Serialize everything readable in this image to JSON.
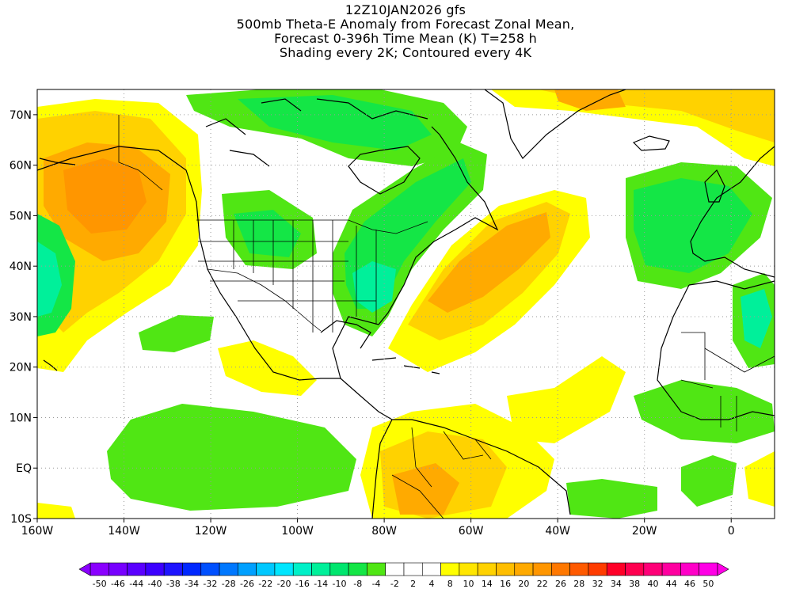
{
  "title": {
    "line1": "12Z10JAN2026 gfs",
    "line2": "500mb Theta-E Anomaly from Forecast Zonal Mean,",
    "line3": "Forecast 0-396h Time Mean (K) T=258 h",
    "line4": "Shading every 2K; Contoured every 4K"
  },
  "map": {
    "lon_range": [
      -160,
      10
    ],
    "lat_range": [
      -10,
      75
    ],
    "x_ticks": [
      "160W",
      "140W",
      "120W",
      "100W",
      "80W",
      "60W",
      "40W",
      "20W",
      "0"
    ],
    "y_ticks": [
      "10S",
      "EQ",
      "10N",
      "20N",
      "30N",
      "40N",
      "50N",
      "60N",
      "70N"
    ],
    "gridlines": "dotted"
  },
  "colorbar": {
    "labels": [
      "-50",
      "-46",
      "-44",
      "-40",
      "-38",
      "-34",
      "-32",
      "-28",
      "-26",
      "-22",
      "-20",
      "-16",
      "-14",
      "-10",
      "-8",
      "-4",
      "-2",
      "2",
      "4",
      "8",
      "10",
      "14",
      "16",
      "20",
      "22",
      "26",
      "28",
      "32",
      "34",
      "38",
      "40",
      "44",
      "46",
      "50"
    ],
    "colors": [
      "#8a00ff",
      "#7700ff",
      "#5a00ff",
      "#3c00ff",
      "#1e14ff",
      "#0028ff",
      "#0050ff",
      "#0078ff",
      "#00a0ff",
      "#00c8ff",
      "#00e6ff",
      "#00f0c8",
      "#00f09a",
      "#00e66e",
      "#14e646",
      "#50e614",
      "#ffffff",
      "#ffffff",
      "#ffffff",
      "#ffff00",
      "#ffe600",
      "#ffd200",
      "#ffbe00",
      "#ffaa00",
      "#ff9600",
      "#ff7800",
      "#ff5a00",
      "#ff3c00",
      "#ff0028",
      "#ff0050",
      "#ff0078",
      "#ff00a0",
      "#ff00c8",
      "#ff00e6"
    ]
  },
  "palette": {
    "green_light": "#50e614",
    "green_mid": "#14e646",
    "green_teal": "#00f09a",
    "yellow": "#ffff00",
    "yellow_orange": "#ffd200",
    "orange": "#ffaa00",
    "orange_deep": "#ff9600"
  }
}
